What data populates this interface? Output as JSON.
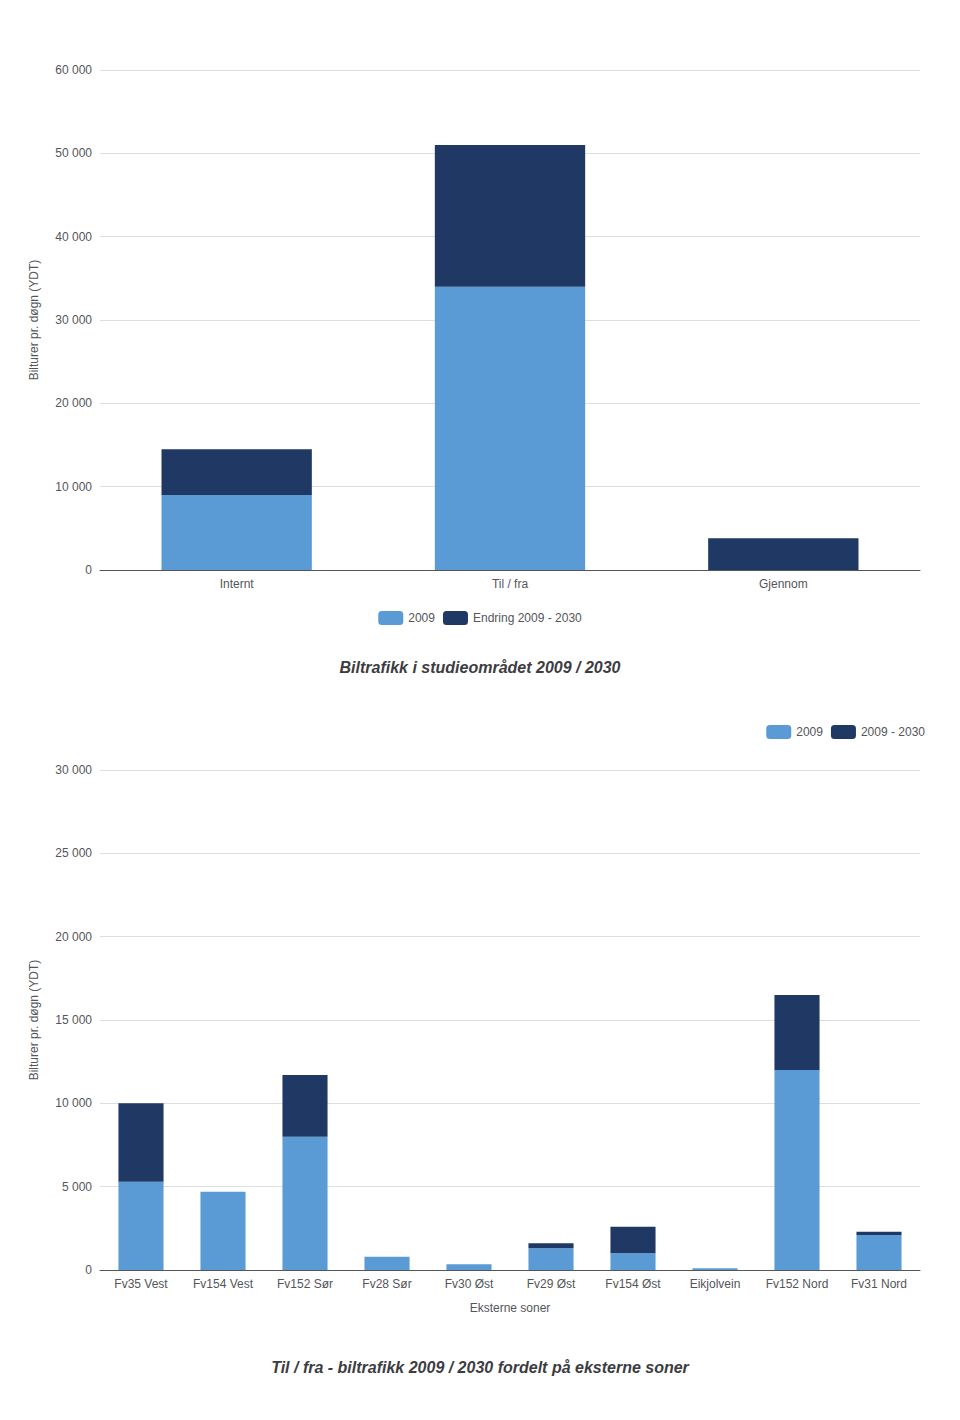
{
  "chart_data": [
    {
      "type": "bar",
      "title": "Biltrafikk i studieområdet 2009 / 2030",
      "ylabel": "Bilturer pr. døgn (YDT)",
      "categories": [
        "Internt",
        "Til / fra",
        "Gjennom"
      ],
      "series": [
        {
          "name": "2009",
          "color": "#5B9BD5",
          "values": [
            9000,
            34000,
            0
          ]
        },
        {
          "name": "Endring 2009 - 2030",
          "color": "#1F3864",
          "values": [
            5500,
            17000,
            3800
          ]
        }
      ],
      "stacked": true,
      "ylim": [
        0,
        60000
      ],
      "yticks": [
        0,
        {
          "value": 10000,
          "label": "10 000"
        },
        {
          "value": 20000,
          "label": "20 000"
        },
        {
          "value": 30000,
          "label": "30 000"
        },
        {
          "value": 40000,
          "label": "40 000"
        },
        {
          "value": 50000,
          "label": "50 000"
        },
        {
          "value": 60000,
          "label": "60 000"
        }
      ],
      "grid": true,
      "legend": "bottom"
    },
    {
      "type": "bar",
      "title": "Til / fra - biltrafikk 2009 / 2030 fordelt på eksterne soner",
      "ylabel": "Bilturer pr. døgn (YDT)",
      "xlabel": "Eksterne soner",
      "categories": [
        "Fv35 Vest",
        "Fv154 Vest",
        "Fv152 Sør",
        "Fv28 Sør",
        "Fv30 Øst",
        "Fv29 Øst",
        "Fv154 Øst",
        "Eikjolvein",
        "Fv152 Nord",
        "Fv31 Nord"
      ],
      "series": [
        {
          "name": "2009",
          "color": "#5B9BD5",
          "values": [
            5300,
            4700,
            8000,
            800,
            350,
            1300,
            1000,
            100,
            12000,
            2100
          ]
        },
        {
          "name": "2009 - 2030",
          "color": "#1F3864",
          "values": [
            4700,
            0,
            3700,
            0,
            0,
            300,
            1600,
            0,
            4500,
            200
          ]
        }
      ],
      "stacked": true,
      "ylim": [
        0,
        30000
      ],
      "yticks": [
        0,
        {
          "value": 5000,
          "label": "5 000"
        },
        {
          "value": 10000,
          "label": "10 000"
        },
        {
          "value": 15000,
          "label": "15 000"
        },
        {
          "value": 20000,
          "label": "20 000"
        },
        {
          "value": 25000,
          "label": "25 000"
        },
        {
          "value": 30000,
          "label": "30 000"
        }
      ],
      "grid": true,
      "legend": "top-right"
    }
  ]
}
